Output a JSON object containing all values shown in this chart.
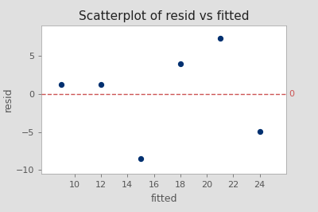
{
  "title": "Scatterplot of resid vs fitted",
  "xlabel": "fitted",
  "ylabel": "resid",
  "x_data": [
    9,
    12,
    15,
    18,
    21,
    24
  ],
  "y_data": [
    1.2,
    1.2,
    -8.5,
    4.0,
    7.3,
    -4.9
  ],
  "dot_color": "#003070",
  "dot_size": 18,
  "hline_y": 0,
  "hline_color": "#cc5555",
  "hline_label": "0",
  "xlim": [
    7.5,
    26
  ],
  "ylim": [
    -10.5,
    9
  ],
  "xticks": [
    10,
    12,
    14,
    16,
    18,
    20,
    22,
    24
  ],
  "yticks": [
    -10,
    -5,
    0,
    5
  ],
  "background_color": "#e0e0e0",
  "plot_bg_color": "#ffffff",
  "title_fontsize": 11,
  "label_fontsize": 9,
  "tick_fontsize": 8,
  "tick_color": "#555555"
}
